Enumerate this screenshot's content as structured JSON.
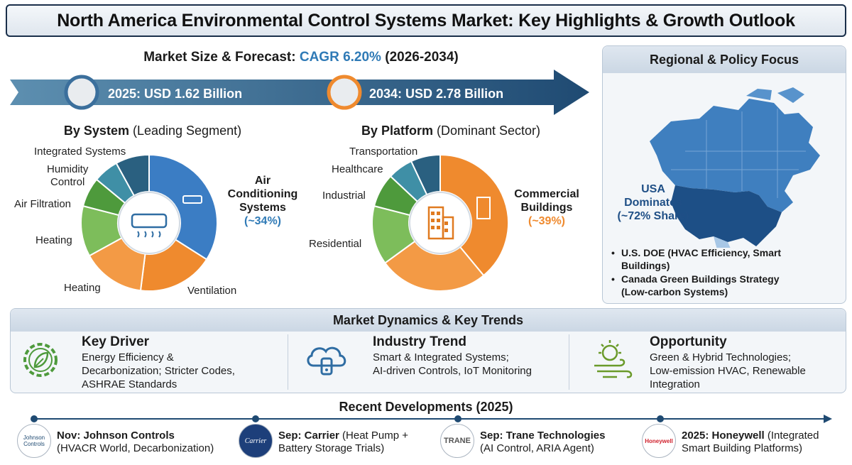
{
  "title": "North America Environmental Control Systems Market: Key Highlights & Growth Outlook",
  "forecast": {
    "prefix": "Market Size & Forecast: ",
    "cagr": "CAGR 6.20%",
    "period": " (2026-2034)",
    "start_label": "2025: USD 1.62 Billion",
    "end_label": "2034: USD 2.78 Billion"
  },
  "chart_data": [
    {
      "type": "pie",
      "title": "By System",
      "subtitle": "(Leading Segment)",
      "slices": [
        {
          "label": "Air Conditioning Systems",
          "value": 34,
          "value_label": "(~34%)",
          "color": "#3b7dc4"
        },
        {
          "label": "Ventilation",
          "value": 18,
          "color": "#ef8a2e"
        },
        {
          "label": "Heating",
          "value": 15,
          "color": "#f39a45"
        },
        {
          "label": "Heating",
          "value": 12,
          "color": "#7dbd5b"
        },
        {
          "label": "Air Filtration",
          "value": 7,
          "color": "#4e9a3c"
        },
        {
          "label": "Humidity Control",
          "value": 6,
          "color": "#3f8fa6"
        },
        {
          "label": "Integrated Systems",
          "value": 8,
          "color": "#2a6080"
        }
      ]
    },
    {
      "type": "pie",
      "title": "By Platform",
      "subtitle": "(Dominant Sector)",
      "slices": [
        {
          "label": "Commercial Buildings",
          "value": 39,
          "value_label": "(~39%)",
          "color": "#ef8a2e"
        },
        {
          "label": "Residential",
          "value": 26,
          "color": "#f39a45"
        },
        {
          "label": "Residential",
          "value": 14,
          "color": "#7dbd5b"
        },
        {
          "label": "Industrial",
          "value": 8,
          "color": "#4e9a3c"
        },
        {
          "label": "Healthcare",
          "value": 6,
          "color": "#3f8fa6"
        },
        {
          "label": "Transportation",
          "value": 7,
          "color": "#2a6080"
        }
      ]
    }
  ],
  "system_labels": {
    "lead_name_1": "Air",
    "lead_name_2": "Conditioning",
    "lead_name_3": "Systems",
    "lead_share": "(~34%)",
    "integrated": "Integrated Systems",
    "humidity_1": "Humidity",
    "humidity_2": "Control",
    "filtration": "Air Filtration",
    "heating_a": "Heating",
    "heating_b": "Heating",
    "ventilation": "Ventilation"
  },
  "platform_labels": {
    "lead_name_1": "Commercial",
    "lead_name_2": "Buildings",
    "lead_share": "(~39%)",
    "transportation": "Transportation",
    "healthcare": "Healthcare",
    "industrial": "Industrial",
    "residential": "Residential"
  },
  "region": {
    "title": "Regional & Policy Focus",
    "usa_1": "USA",
    "usa_2": "Dominates",
    "usa_3": "(~72% Share)",
    "policies": [
      {
        "l1": "U.S. DOE (HVAC Efficiency, Smart",
        "l2": "Buildings)"
      },
      {
        "l1": "Canada Green Buildings Strategy",
        "l2": "(Low-carbon Systems)"
      }
    ]
  },
  "dynamics": {
    "title": "Market Dynamics & Key Trends",
    "driver": {
      "title": "Key Driver",
      "l1": "Energy Efficiency &",
      "l2": "Decarbonization; Stricter Codes,",
      "l3": "ASHRAE Standards"
    },
    "trend": {
      "title": "Industry Trend",
      "l1": "Smart & Integrated Systems;",
      "l2": "AI-driven Controls, IoT Monitoring"
    },
    "opportunity": {
      "title": "Opportunity",
      "l1": "Green & Hybrid Technologies;",
      "l2": "Low-emission HVAC, Renewable",
      "l3": "Integration"
    }
  },
  "recent": {
    "title": "Recent Developments (2025)",
    "items": [
      {
        "logo": "Johnson Controls",
        "bold": "Nov: Johnson Controls",
        "rest": "",
        "l2": "(HVACR World, Decarbonization)"
      },
      {
        "logo": "Carrier",
        "bold": "Sep: Carrier",
        "rest": " (Heat Pump +",
        "l2": "Battery Storage Trials)"
      },
      {
        "logo": "TRANE",
        "bold": "Sep: Trane Technologies",
        "rest": "",
        "l2": "(AI Control, ARIA Agent)"
      },
      {
        "logo": "Honeywell",
        "bold": "2025: Honeywell",
        "rest": " (Integrated",
        "l2": "Smart Building Platforms)"
      }
    ]
  }
}
